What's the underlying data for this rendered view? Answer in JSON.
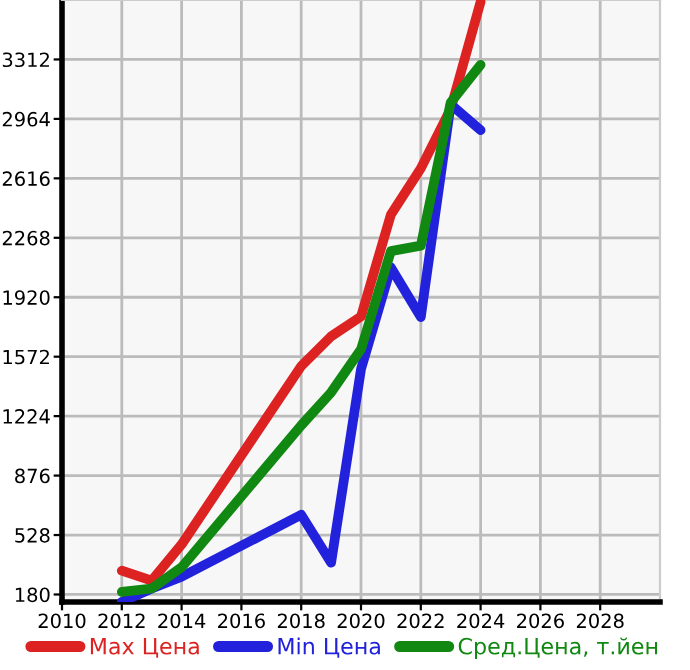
{
  "chart_data": {
    "type": "line",
    "series": [
      {
        "name": "Max Цена",
        "color": "#dd2222",
        "x": [
          2012,
          2013,
          2014,
          2018,
          2019,
          2020,
          2021,
          2022,
          2023,
          2024
        ],
        "values": [
          319,
          261,
          473,
          1517,
          1691,
          1807,
          2404,
          2674,
          3022,
          3650
        ]
      },
      {
        "name": "Min Цена",
        "color": "#2222dd",
        "x": [
          2012,
          2013,
          2014,
          2018,
          2019,
          2020,
          2021,
          2022,
          2023,
          2024
        ],
        "values": [
          137,
          215,
          284,
          647,
          366,
          1499,
          2094,
          1804,
          3049,
          2898
        ]
      },
      {
        "name": "Сред.Цена, т.йен",
        "color": "#118811",
        "x": [
          2012,
          2013,
          2014,
          2018,
          2019,
          2020,
          2021,
          2022,
          2023,
          2024
        ],
        "values": [
          195,
          215,
          339,
          1170,
          1363,
          1615,
          2190,
          2222,
          3060,
          3281
        ]
      }
    ],
    "xlim": [
      2010,
      2030
    ],
    "xticks": [
      2010,
      2012,
      2014,
      2016,
      2018,
      2020,
      2022,
      2024,
      2026,
      2028
    ],
    "ylim": [
      136,
      3660
    ],
    "yticks": [
      180,
      528,
      876,
      1224,
      1572,
      1920,
      2268,
      2616,
      2964,
      3312
    ],
    "grid": true,
    "legend": "bottom",
    "marker": "none",
    "line_style": "solid"
  }
}
